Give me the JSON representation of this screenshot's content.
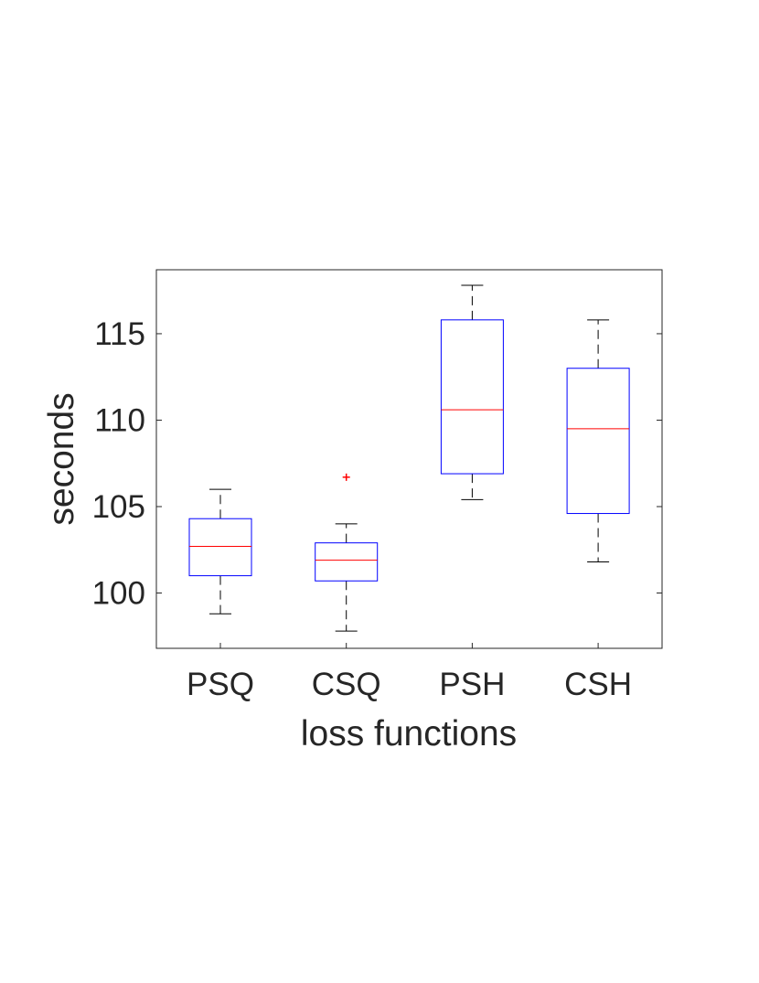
{
  "chart_data": {
    "type": "box",
    "title": "",
    "xlabel": "loss functions",
    "ylabel": "seconds",
    "ylim": [
      96.8,
      118.7
    ],
    "yticks": [
      100,
      105,
      110,
      115
    ],
    "categories": [
      "PSQ",
      "CSQ",
      "PSH",
      "CSH"
    ],
    "boxes": [
      {
        "category": "PSQ",
        "whisker_low": 98.8,
        "q1": 101.0,
        "median": 102.7,
        "q3": 104.3,
        "whisker_high": 106.0,
        "outliers": []
      },
      {
        "category": "CSQ",
        "whisker_low": 97.8,
        "q1": 100.7,
        "median": 101.9,
        "q3": 102.9,
        "whisker_high": 104.0,
        "outliers": [
          106.7
        ]
      },
      {
        "category": "PSH",
        "whisker_low": 105.4,
        "q1": 106.9,
        "median": 110.6,
        "q3": 115.8,
        "whisker_high": 117.8,
        "outliers": []
      },
      {
        "category": "CSH",
        "whisker_low": 101.8,
        "q1": 104.6,
        "median": 109.5,
        "q3": 113.0,
        "whisker_high": 115.8,
        "outliers": []
      }
    ],
    "grid": false,
    "legend": "none"
  },
  "colors": {
    "box": "#0000ff",
    "median": "#ff0000",
    "whisker": "#000000",
    "outlier": "#ff0000",
    "axes": "#262626"
  }
}
